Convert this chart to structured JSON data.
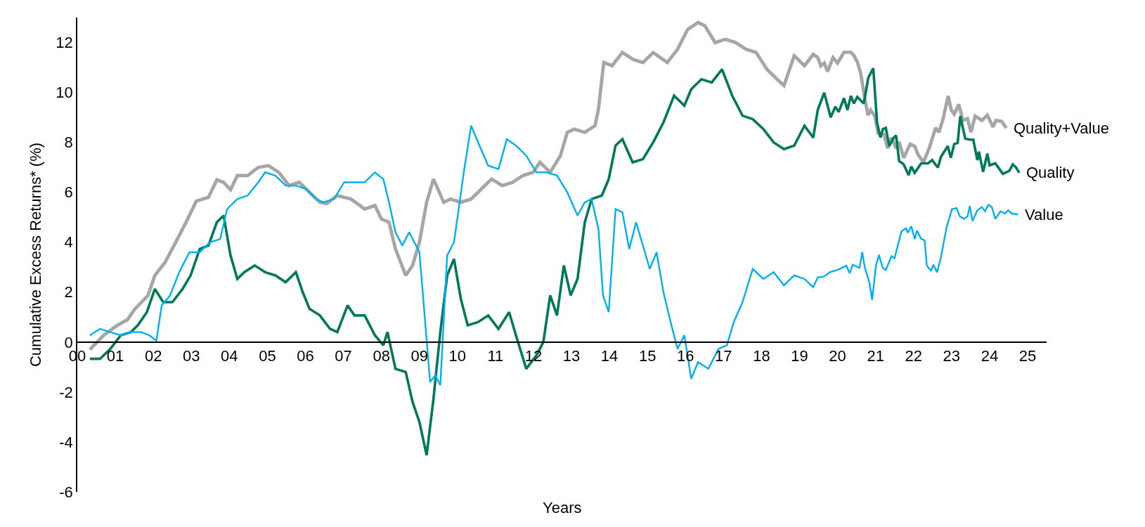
{
  "chart_data": {
    "type": "line",
    "xlabel": "Years",
    "ylabel": "Cumulative Excess Returns* (%)",
    "xlim": [
      0,
      25.5
    ],
    "ylim": [
      -6,
      13
    ],
    "xticks": [
      {
        "value": 0,
        "label": "00"
      },
      {
        "value": 1,
        "label": "01"
      },
      {
        "value": 2,
        "label": "02"
      },
      {
        "value": 3,
        "label": "03"
      },
      {
        "value": 4,
        "label": "04"
      },
      {
        "value": 5,
        "label": "05"
      },
      {
        "value": 6,
        "label": "06"
      },
      {
        "value": 7,
        "label": "07"
      },
      {
        "value": 8,
        "label": "08"
      },
      {
        "value": 9,
        "label": "09"
      },
      {
        "value": 10,
        "label": "10"
      },
      {
        "value": 11,
        "label": "11"
      },
      {
        "value": 12,
        "label": "12"
      },
      {
        "value": 13,
        "label": "13"
      },
      {
        "value": 14,
        "label": "14"
      },
      {
        "value": 15,
        "label": "15"
      },
      {
        "value": 16,
        "label": "16"
      },
      {
        "value": 17,
        "label": "17"
      },
      {
        "value": 18,
        "label": "18"
      },
      {
        "value": 19,
        "label": "19"
      },
      {
        "value": 20,
        "label": "20"
      },
      {
        "value": 21,
        "label": "21"
      },
      {
        "value": 22,
        "label": "22"
      },
      {
        "value": 23,
        "label": "23"
      },
      {
        "value": 24,
        "label": "24"
      },
      {
        "value": 25,
        "label": "25"
      }
    ],
    "yticks": [
      -6,
      -4,
      -2,
      0,
      2,
      4,
      6,
      8,
      10,
      12
    ],
    "legend": false,
    "marker": "none",
    "line_style": "solid",
    "series": [
      {
        "name": "Quality+Value",
        "color": "#a6a6a6",
        "x": [
          0.33,
          0.69,
          1.05,
          1.32,
          1.5,
          1.86,
          2.04,
          2.31,
          2.59,
          2.86,
          3.13,
          3.45,
          3.67,
          3.85,
          4.03,
          4.21,
          4.48,
          4.76,
          5.03,
          5.3,
          5.57,
          5.84,
          6.11,
          6.38,
          6.56,
          6.84,
          7.2,
          7.56,
          7.83,
          8.0,
          8.2,
          8.37,
          8.64,
          8.82,
          9.0,
          9.19,
          9.37,
          9.64,
          9.82,
          10.09,
          10.36,
          10.63,
          10.9,
          11.18,
          11.45,
          11.72,
          11.99,
          12.17,
          12.44,
          12.71,
          12.89,
          13.07,
          13.35,
          13.62,
          13.71,
          13.85,
          14.07,
          14.34,
          14.61,
          14.88,
          15.15,
          15.52,
          15.79,
          16.06,
          16.33,
          16.51,
          16.78,
          17.05,
          17.32,
          17.59,
          17.86,
          18.14,
          18.41,
          18.59,
          18.86,
          19.13,
          19.36,
          19.48,
          19.56,
          19.65,
          19.74,
          19.88,
          20.0,
          20.17,
          20.35,
          20.43,
          20.52,
          20.61,
          20.72,
          20.8,
          20.87,
          20.98,
          21.07,
          21.22,
          21.32,
          21.42,
          21.54,
          21.62,
          21.74,
          21.91,
          22.03,
          22.12,
          22.26,
          22.41,
          22.58,
          22.67,
          22.78,
          22.91,
          22.99,
          23.07,
          23.19,
          23.3,
          23.42,
          23.51,
          23.62,
          23.8,
          23.94,
          24.09,
          24.17,
          24.32,
          24.44
        ],
        "values": [
          -0.3,
          0.27,
          0.67,
          0.9,
          1.3,
          1.87,
          2.67,
          3.2,
          4.0,
          4.8,
          5.65,
          5.8,
          6.5,
          6.4,
          6.1,
          6.67,
          6.67,
          7.0,
          7.07,
          6.8,
          6.27,
          6.4,
          6.0,
          5.6,
          5.55,
          5.87,
          5.73,
          5.33,
          5.47,
          4.93,
          4.8,
          3.73,
          2.67,
          3.07,
          4.0,
          5.6,
          6.53,
          5.6,
          5.73,
          5.6,
          5.73,
          6.13,
          6.53,
          6.27,
          6.4,
          6.67,
          6.8,
          7.2,
          6.8,
          7.47,
          8.4,
          8.53,
          8.4,
          8.67,
          9.33,
          11.2,
          11.07,
          11.6,
          11.33,
          11.2,
          11.6,
          11.2,
          11.73,
          12.53,
          12.8,
          12.67,
          12.0,
          12.13,
          12.0,
          11.73,
          11.6,
          10.93,
          10.53,
          10.27,
          11.47,
          11.07,
          11.53,
          11.4,
          11.06,
          11.18,
          10.84,
          11.4,
          11.18,
          11.61,
          11.61,
          11.48,
          11.23,
          10.76,
          9.73,
          9.09,
          9.3,
          9.05,
          8.36,
          8.32,
          7.76,
          8.19,
          7.76,
          8.02,
          7.38,
          7.93,
          7.85,
          7.5,
          7.21,
          7.76,
          8.58,
          8.41,
          8.96,
          9.86,
          9.3,
          9.13,
          9.52,
          8.88,
          8.96,
          8.41,
          9.05,
          8.88,
          9.09,
          8.62,
          8.88,
          8.84,
          8.58
        ]
      },
      {
        "name": "Quality",
        "color": "#00785a",
        "x": [
          0.33,
          0.6,
          0.87,
          1.14,
          1.41,
          1.59,
          1.83,
          2.04,
          2.26,
          2.5,
          2.77,
          2.98,
          3.22,
          3.45,
          3.67,
          3.85,
          4.03,
          4.21,
          4.39,
          4.67,
          4.94,
          5.21,
          5.48,
          5.75,
          5.93,
          6.11,
          6.38,
          6.65,
          6.84,
          7.11,
          7.29,
          7.56,
          7.83,
          8.05,
          8.16,
          8.37,
          8.64,
          8.82,
          9.0,
          9.19,
          9.37,
          9.55,
          9.73,
          9.91,
          10.09,
          10.27,
          10.54,
          10.81,
          11.08,
          11.36,
          11.54,
          11.81,
          12.08,
          12.26,
          12.44,
          12.62,
          12.8,
          12.98,
          13.16,
          13.35,
          13.53,
          13.8,
          13.98,
          14.16,
          14.34,
          14.61,
          14.88,
          15.15,
          15.42,
          15.7,
          15.97,
          16.15,
          16.42,
          16.69,
          16.96,
          17.23,
          17.5,
          17.77,
          18.05,
          18.32,
          18.59,
          18.86,
          19.13,
          19.36,
          19.48,
          19.65,
          19.82,
          19.94,
          20.03,
          20.17,
          20.26,
          20.35,
          20.43,
          20.52,
          20.69,
          20.81,
          20.94,
          21.04,
          21.13,
          21.19,
          21.27,
          21.36,
          21.48,
          21.54,
          21.62,
          21.74,
          21.87,
          21.94,
          22.03,
          22.2,
          22.38,
          22.49,
          22.64,
          22.72,
          22.9,
          22.98,
          23.07,
          23.16,
          23.23,
          23.36,
          23.48,
          23.57,
          23.68,
          23.72,
          23.83,
          23.94,
          24.0,
          24.15,
          24.35,
          24.52,
          24.61,
          24.7,
          24.78
        ],
        "values": [
          -0.67,
          -0.67,
          -0.27,
          0.27,
          0.4,
          0.67,
          1.2,
          2.13,
          1.6,
          1.6,
          2.13,
          2.67,
          3.73,
          3.87,
          4.8,
          5.07,
          3.47,
          2.53,
          2.8,
          3.07,
          2.8,
          2.67,
          2.4,
          2.8,
          2.0,
          1.33,
          1.07,
          0.53,
          0.4,
          1.47,
          1.07,
          1.07,
          0.27,
          -0.13,
          0.4,
          -1.07,
          -1.2,
          -2.4,
          -3.2,
          -4.53,
          -2.27,
          0.4,
          2.67,
          3.33,
          1.73,
          0.67,
          0.8,
          1.07,
          0.53,
          1.2,
          0.27,
          -1.07,
          -0.53,
          0,
          1.87,
          1.07,
          3.07,
          1.87,
          2.53,
          4.8,
          5.73,
          5.87,
          6.53,
          7.87,
          8.13,
          7.2,
          7.33,
          8.0,
          8.8,
          9.87,
          9.47,
          10.13,
          10.53,
          10.4,
          10.93,
          9.87,
          9.07,
          8.93,
          8.53,
          8.0,
          7.73,
          7.87,
          8.67,
          8.19,
          9.3,
          9.99,
          9.0,
          9.43,
          9.22,
          9.77,
          9.3,
          9.86,
          9.56,
          9.82,
          9.56,
          10.59,
          10.97,
          8.79,
          8.19,
          8.53,
          8.58,
          7.85,
          8.19,
          8.28,
          7.25,
          7.12,
          6.69,
          7.03,
          6.78,
          7.16,
          7.16,
          7.29,
          6.99,
          7.42,
          7.85,
          7.38,
          7.93,
          7.98,
          9.05,
          8.15,
          8.11,
          8.11,
          7.29,
          7.63,
          6.82,
          7.55,
          7.08,
          7.16,
          6.74,
          6.86,
          7.12,
          6.99,
          6.78
        ]
      },
      {
        "name": "Value",
        "color": "#00b0f0",
        "x": [
          0.33,
          0.6,
          0.87,
          1.14,
          1.41,
          1.68,
          1.9,
          2.08,
          2.22,
          2.44,
          2.68,
          2.95,
          3.22,
          3.49,
          3.76,
          3.94,
          4.21,
          4.48,
          4.76,
          4.94,
          5.21,
          5.48,
          5.75,
          6.02,
          6.29,
          6.47,
          6.75,
          7.02,
          7.29,
          7.56,
          7.83,
          8.05,
          8.2,
          8.37,
          8.55,
          8.73,
          9.0,
          9.13,
          9.28,
          9.42,
          9.55,
          9.73,
          9.91,
          10.18,
          10.36,
          10.58,
          10.81,
          11.08,
          11.3,
          11.54,
          11.81,
          12.08,
          12.35,
          12.62,
          12.89,
          13.16,
          13.35,
          13.53,
          13.71,
          13.83,
          13.98,
          14.16,
          14.34,
          14.52,
          14.7,
          14.88,
          15.06,
          15.24,
          15.42,
          15.61,
          15.79,
          15.97,
          16.15,
          16.33,
          16.6,
          16.87,
          17.09,
          17.27,
          17.5,
          17.77,
          18.05,
          18.32,
          18.59,
          18.86,
          19.13,
          19.36,
          19.48,
          19.65,
          19.8,
          20.0,
          20.23,
          20.32,
          20.4,
          20.58,
          20.65,
          20.72,
          20.84,
          20.91,
          21.01,
          21.09,
          21.19,
          21.27,
          21.42,
          21.5,
          21.68,
          21.8,
          21.85,
          21.94,
          22.03,
          22.09,
          22.2,
          22.29,
          22.35,
          22.46,
          22.52,
          22.62,
          22.72,
          22.87,
          23.01,
          23.13,
          23.22,
          23.33,
          23.42,
          23.48,
          23.55,
          23.68,
          23.8,
          23.88,
          23.97,
          24.06,
          24.15,
          24.29,
          24.41,
          24.49,
          24.58,
          24.75
        ],
        "values": [
          0.27,
          0.53,
          0.4,
          0.27,
          0.4,
          0.4,
          0.27,
          0.05,
          1.47,
          1.87,
          2.8,
          3.6,
          3.6,
          4.0,
          4.13,
          5.33,
          5.73,
          5.87,
          6.4,
          6.8,
          6.67,
          6.27,
          6.27,
          6.13,
          5.73,
          5.6,
          5.73,
          6.4,
          6.4,
          6.4,
          6.8,
          6.53,
          5.6,
          4.4,
          3.87,
          4.4,
          3.6,
          1.2,
          -1.6,
          -1.33,
          -1.73,
          3.47,
          4.0,
          6.93,
          8.67,
          7.87,
          7.07,
          6.93,
          8.13,
          7.87,
          7.47,
          6.8,
          6.8,
          6.67,
          6.0,
          5.07,
          5.6,
          5.73,
          4.53,
          1.87,
          1.2,
          5.33,
          5.2,
          3.73,
          4.8,
          3.87,
          2.93,
          3.6,
          2.0,
          0.8,
          -0.27,
          0.27,
          -1.47,
          -0.8,
          -1.07,
          -0.27,
          -0.13,
          0.8,
          1.6,
          2.93,
          2.53,
          2.8,
          2.27,
          2.67,
          2.53,
          2.2,
          2.59,
          2.63,
          2.8,
          2.89,
          3.06,
          2.76,
          3.1,
          2.97,
          3.61,
          2.97,
          2.37,
          1.69,
          3.06,
          3.49,
          2.97,
          2.89,
          3.44,
          3.36,
          4.43,
          4.56,
          4.38,
          4.64,
          4.13,
          4.47,
          4.13,
          4.08,
          3.06,
          2.85,
          3.1,
          2.8,
          3.4,
          4.6,
          5.32,
          5.37,
          5.03,
          4.94,
          5.03,
          5.45,
          4.85,
          5.28,
          5.41,
          5.24,
          5.5,
          5.41,
          4.94,
          5.24,
          5.15,
          5.28,
          5.15,
          5.11
        ]
      }
    ]
  }
}
